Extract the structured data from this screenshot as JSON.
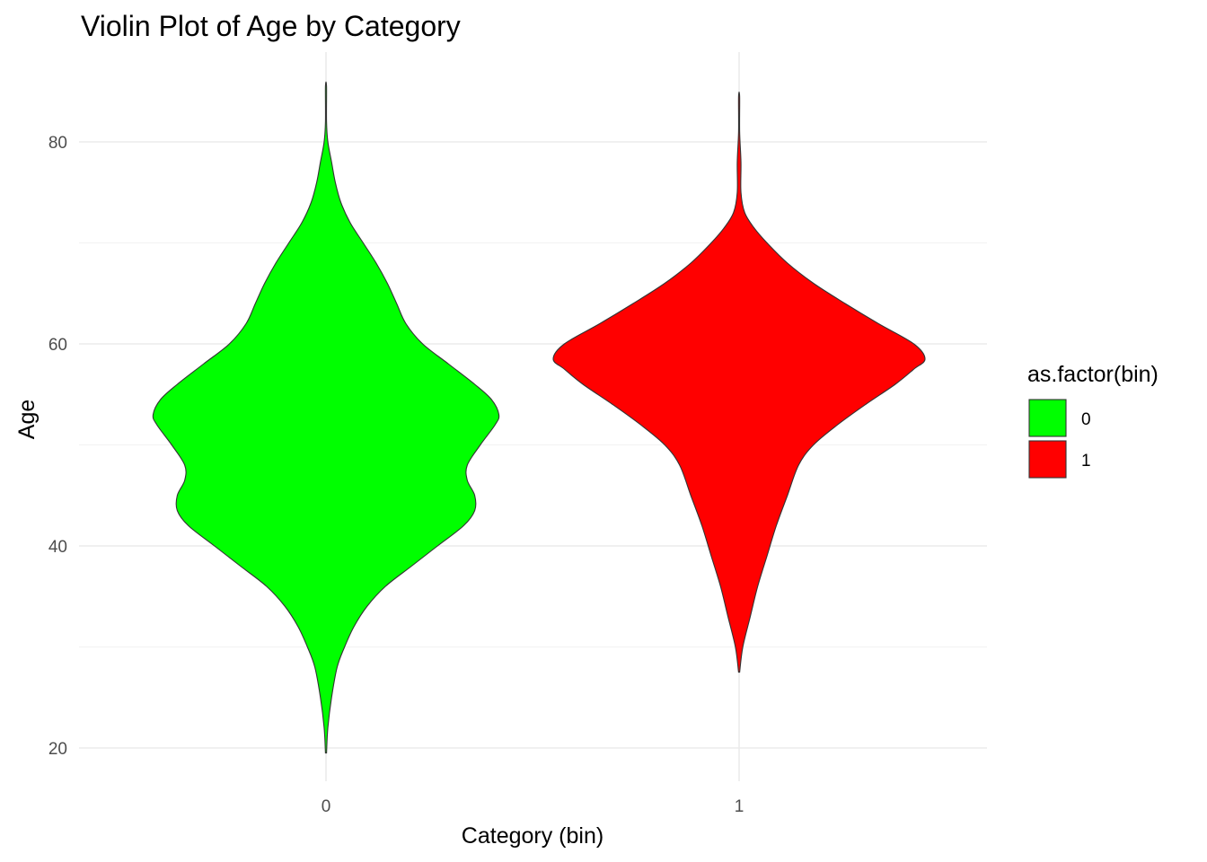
{
  "chart_data": {
    "type": "violin",
    "title": "Violin Plot of Age by Category",
    "xlabel": "Category (bin)",
    "ylabel": "Age",
    "categories": [
      "0",
      "1"
    ],
    "ylim": [
      15,
      88
    ],
    "y_ticks": [
      20,
      40,
      60,
      80
    ],
    "grid": true,
    "legend": {
      "title": "as.factor(bin)",
      "position": "right",
      "entries": [
        {
          "label": "0",
          "color": "#00ff00"
        },
        {
          "label": "1",
          "color": "#ff0000"
        }
      ]
    },
    "series": [
      {
        "category": "0",
        "color": "#00ff00",
        "min": 19.5,
        "max": 85.5,
        "density_profile": [
          [
            19.5,
            0
          ],
          [
            22,
            0.01
          ],
          [
            25,
            0.03
          ],
          [
            28,
            0.06
          ],
          [
            30,
            0.1
          ],
          [
            32,
            0.15
          ],
          [
            34,
            0.22
          ],
          [
            36,
            0.32
          ],
          [
            38,
            0.46
          ],
          [
            40,
            0.6
          ],
          [
            42,
            0.74
          ],
          [
            43.5,
            0.8
          ],
          [
            45,
            0.8
          ],
          [
            46.5,
            0.76
          ],
          [
            48,
            0.76
          ],
          [
            50,
            0.83
          ],
          [
            52,
            0.91
          ],
          [
            53,
            0.93
          ],
          [
            54.5,
            0.89
          ],
          [
            56,
            0.8
          ],
          [
            58,
            0.66
          ],
          [
            60,
            0.52
          ],
          [
            62,
            0.43
          ],
          [
            64,
            0.38
          ],
          [
            66,
            0.33
          ],
          [
            68,
            0.27
          ],
          [
            70,
            0.2
          ],
          [
            72,
            0.13
          ],
          [
            74,
            0.08
          ],
          [
            76,
            0.05
          ],
          [
            78,
            0.03
          ],
          [
            80,
            0.01
          ],
          [
            82,
            0
          ],
          [
            85.5,
            0
          ]
        ]
      },
      {
        "category": "1",
        "color": "#ff0000",
        "min": 27.5,
        "max": 84.5,
        "density_profile": [
          [
            27.5,
            0
          ],
          [
            30,
            0.02
          ],
          [
            33,
            0.06
          ],
          [
            36,
            0.1
          ],
          [
            39,
            0.15
          ],
          [
            42,
            0.2
          ],
          [
            45,
            0.26
          ],
          [
            48,
            0.32
          ],
          [
            50,
            0.4
          ],
          [
            52,
            0.53
          ],
          [
            54,
            0.68
          ],
          [
            56,
            0.84
          ],
          [
            57.5,
            0.94
          ],
          [
            58.5,
            1.0
          ],
          [
            60,
            0.94
          ],
          [
            62,
            0.75
          ],
          [
            64,
            0.57
          ],
          [
            66,
            0.4
          ],
          [
            68,
            0.26
          ],
          [
            70,
            0.15
          ],
          [
            71.5,
            0.08
          ],
          [
            73,
            0.03
          ],
          [
            75,
            0.01
          ],
          [
            78,
            0.01
          ],
          [
            81,
            0
          ],
          [
            84.5,
            0
          ]
        ]
      }
    ]
  }
}
